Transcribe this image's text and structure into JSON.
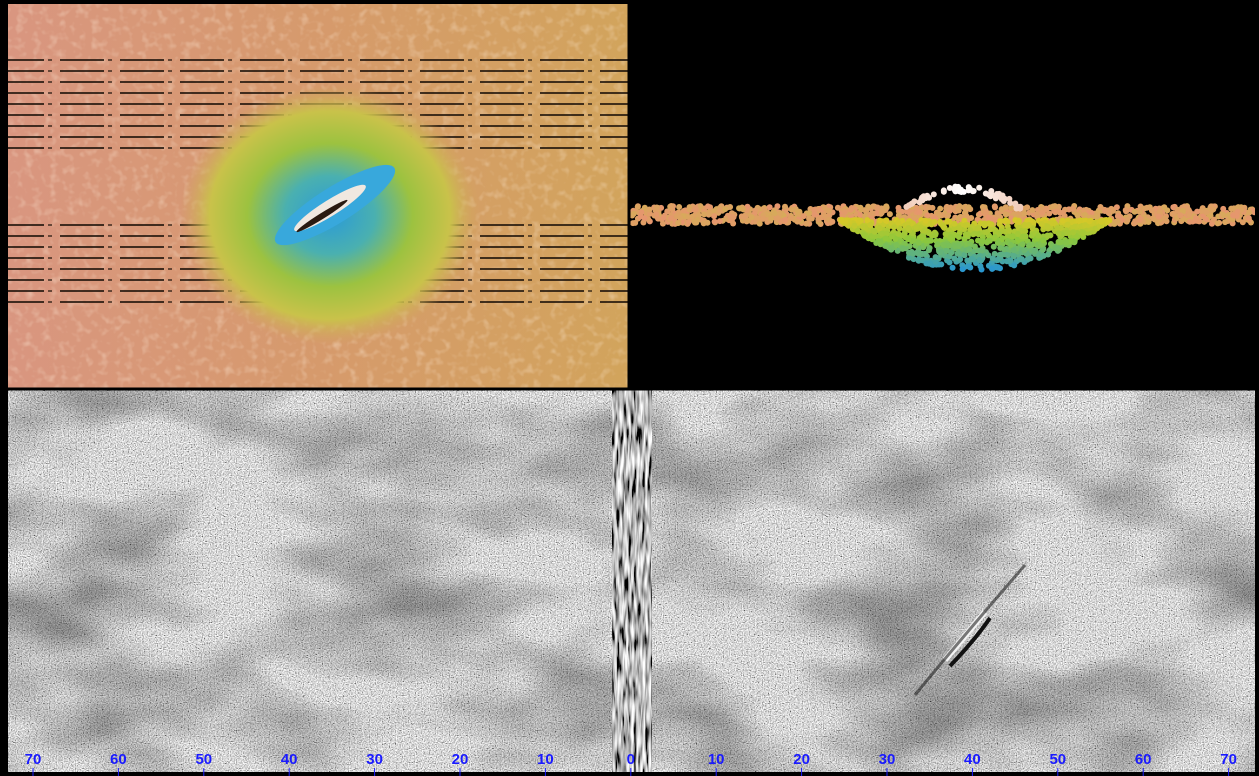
{
  "scale": {
    "ticks": [
      70,
      60,
      50,
      40,
      30,
      20,
      10,
      0,
      10,
      20,
      30,
      40,
      50,
      60,
      70
    ]
  }
}
